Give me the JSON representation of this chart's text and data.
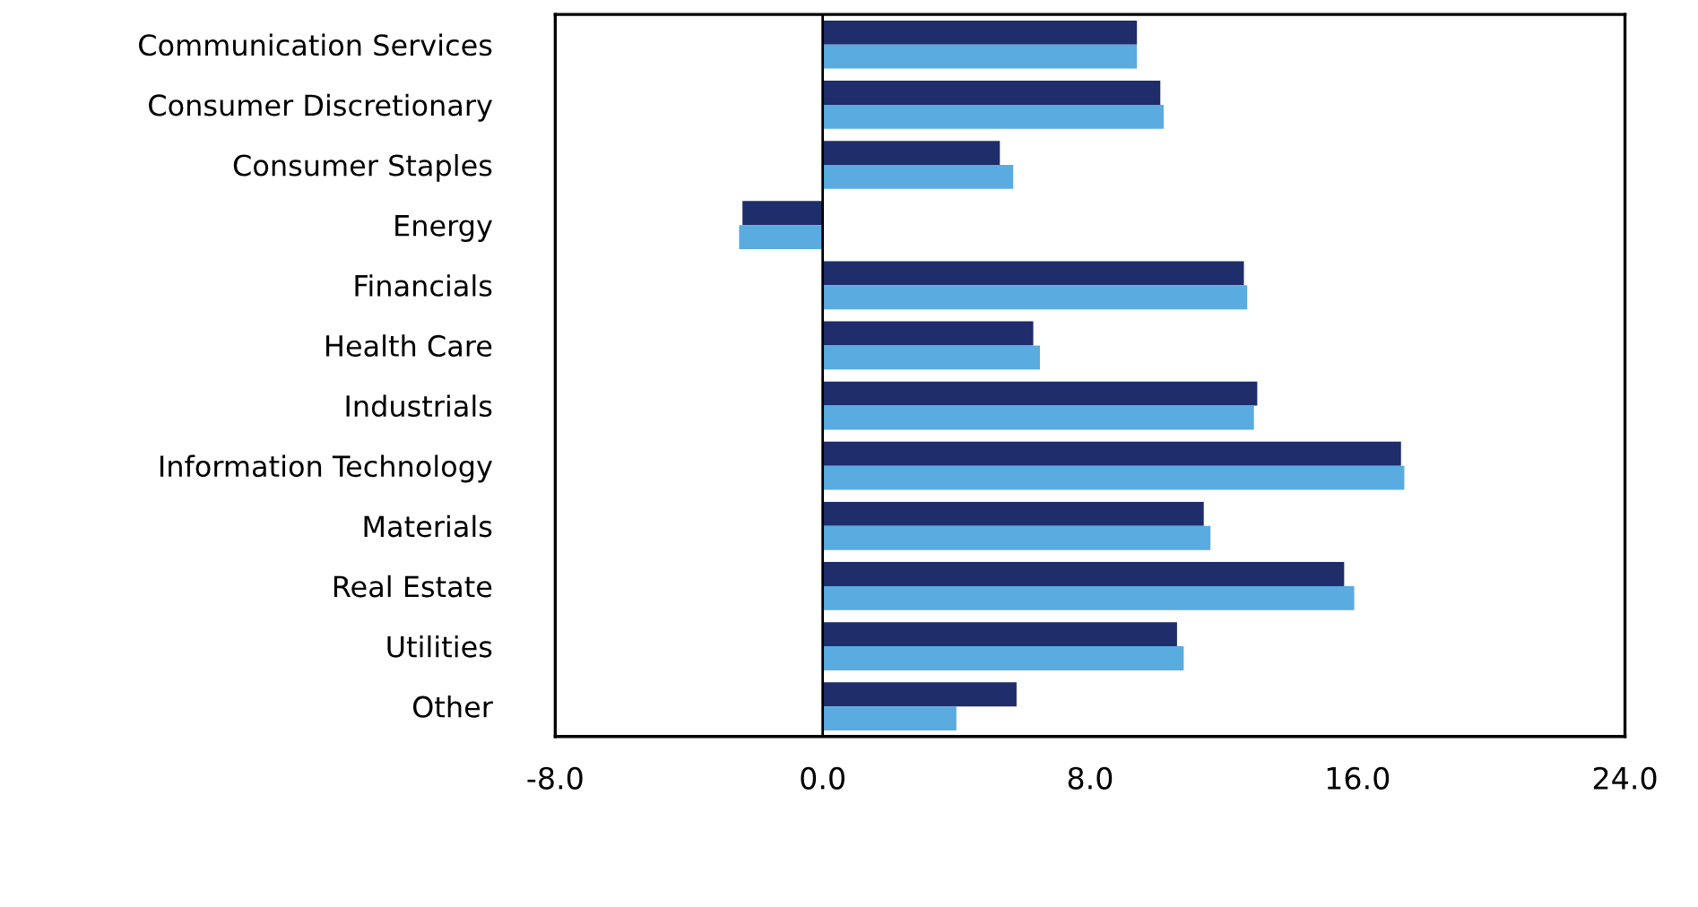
{
  "chart_data": {
    "type": "bar",
    "orientation": "horizontal",
    "categories": [
      "Communication Services",
      "Consumer Discretionary",
      "Consumer Staples",
      "Energy",
      "Financials",
      "Health Care",
      "Industrials",
      "Information Technology",
      "Materials",
      "Real Estate",
      "Utilities",
      "Other"
    ],
    "series": [
      {
        "color": "#1f2d6b",
        "values": [
          9.4,
          10.1,
          5.3,
          -2.4,
          12.6,
          6.3,
          13.0,
          17.3,
          11.4,
          15.6,
          10.6,
          5.8
        ]
      },
      {
        "color": "#5aabe0",
        "values": [
          9.4,
          10.2,
          5.7,
          -2.5,
          12.7,
          6.5,
          12.9,
          17.4,
          11.6,
          15.9,
          10.8,
          4.0
        ]
      }
    ],
    "xlim": [
      -8,
      24
    ],
    "xticks": [
      {
        "value": -8,
        "label": "-8.0"
      },
      {
        "value": 0,
        "label": "0.0"
      },
      {
        "value": 8,
        "label": "8.0"
      },
      {
        "value": 16,
        "label": "16.0"
      },
      {
        "value": 24,
        "label": "24.0"
      }
    ],
    "ref_lines": [
      {
        "axis": "x",
        "value": 0,
        "color": "#000000"
      }
    ],
    "grid": false
  }
}
